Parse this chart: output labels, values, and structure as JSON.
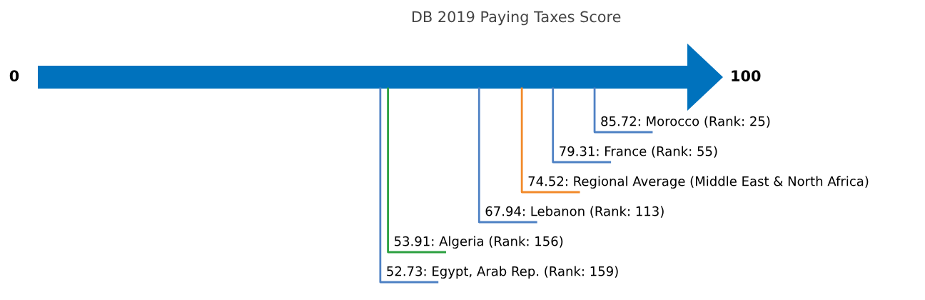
{
  "chart_data": {
    "type": "other",
    "title": "DB 2019 Paying Taxes Score",
    "categories": [
      null,
      null,
      null,
      null,
      null,
      null
    ],
    "values": [
      85.72,
      79.31,
      74.52,
      67.94,
      53.91,
      52.73
    ],
    "value_labels": [
      "85.72: Morocco (Rank: 25)",
      "79.31: France (Rank: 55)",
      "74.52: Regional Average (Middle East & North Africa)",
      "67.94: Lebanon (Rank: 113)",
      "53.91: Algeria (Rank: 156)",
      "52.73: Egypt, Arab Rep. (Rank: 159)"
    ],
    "colors": [
      "#4e81c4",
      "#4e81c4",
      "#f28a2a",
      "#4e81c4",
      "#2ca040",
      "#4e81c4"
    ],
    "annotations": [
      "0",
      "100"
    ]
  }
}
